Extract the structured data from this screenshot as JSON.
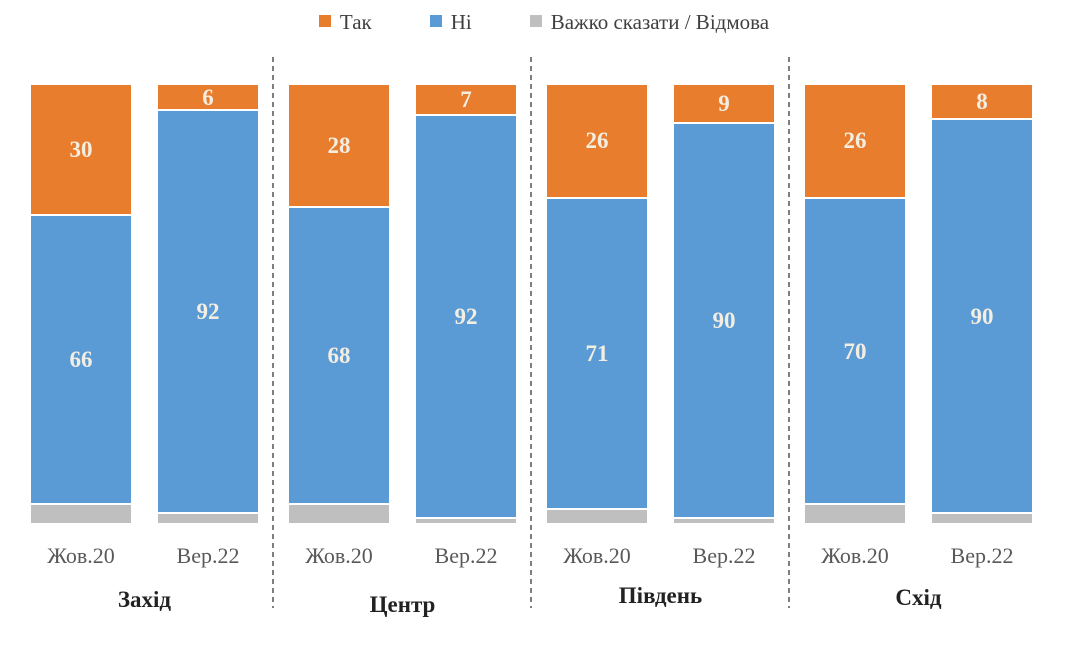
{
  "chart_data": {
    "type": "bar",
    "subtype": "stacked-100-percent",
    "unit": "%",
    "title": "",
    "xlabel": "",
    "ylabel": "",
    "ylim": [
      0,
      100
    ],
    "grid": false,
    "axes_visible": false,
    "legend_position": "top-center",
    "legend": [
      {
        "label": "Так",
        "color": "#E87D2D"
      },
      {
        "label": "Ні",
        "color": "#5B9BD5"
      },
      {
        "label": "Важко сказати / Відмова",
        "color": "#BFBFBF"
      }
    ],
    "value_label_color": "#F3EEE1",
    "separator_color": "#7F7F7F",
    "categories_per_group": [
      "Жов.20",
      "Вер.22"
    ],
    "groups": [
      {
        "label": "Захід",
        "bars": [
          {
            "period": "Жов.20",
            "tak": 30,
            "ni": 66,
            "vazhko": 4
          },
          {
            "period": "Вер.22",
            "tak": 6,
            "ni": 92,
            "vazhko": 2
          }
        ]
      },
      {
        "label": "Центр",
        "bars": [
          {
            "period": "Жов.20",
            "tak": 28,
            "ni": 68,
            "vazhko": 4
          },
          {
            "period": "Вер.22",
            "tak": 7,
            "ni": 92,
            "vazhko": 1
          }
        ]
      },
      {
        "label": "Південь",
        "bars": [
          {
            "period": "Жов.20",
            "tak": 26,
            "ni": 71,
            "vazhko": 3
          },
          {
            "period": "Вер.22",
            "tak": 9,
            "ni": 90,
            "vazhko": 1
          }
        ]
      },
      {
        "label": "Схід",
        "bars": [
          {
            "period": "Жов.20",
            "tak": 26,
            "ni": 70,
            "vazhko": 4
          },
          {
            "period": "Вер.22",
            "tak": 8,
            "ni": 90,
            "vazhko": 2
          }
        ]
      }
    ]
  }
}
